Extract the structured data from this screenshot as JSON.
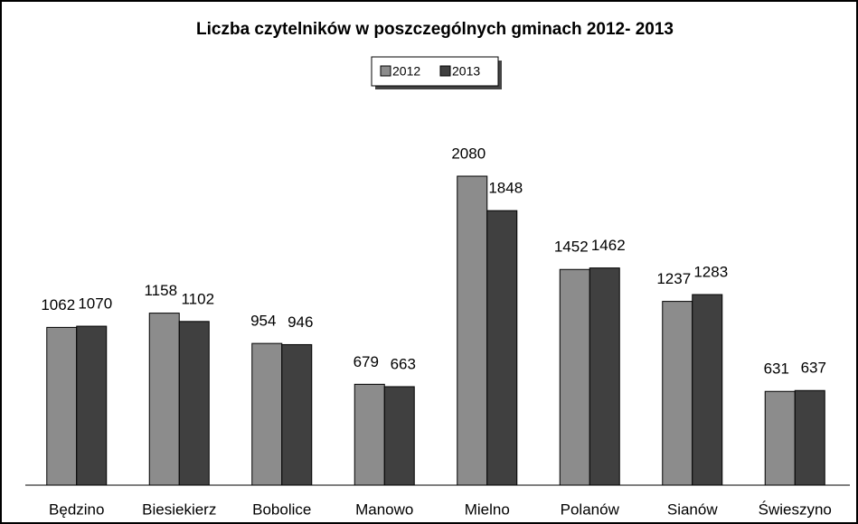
{
  "chart_data": {
    "type": "bar",
    "title": "Liczba czytelników w poszczególnych gminach 2012- 2013",
    "categories": [
      "Będzino",
      "Biesiekierz",
      "Bobolice",
      "Manowo",
      "Mielno",
      "Polanów",
      "Sianów",
      "Świeszyno"
    ],
    "series": [
      {
        "name": "2012",
        "color": "#8c8c8c",
        "values": [
          1062,
          1158,
          954,
          679,
          2080,
          1452,
          1237,
          631
        ]
      },
      {
        "name": "2013",
        "color": "#404040",
        "values": [
          1070,
          1102,
          946,
          663,
          1848,
          1462,
          1283,
          637
        ]
      }
    ],
    "legend": "top"
  }
}
